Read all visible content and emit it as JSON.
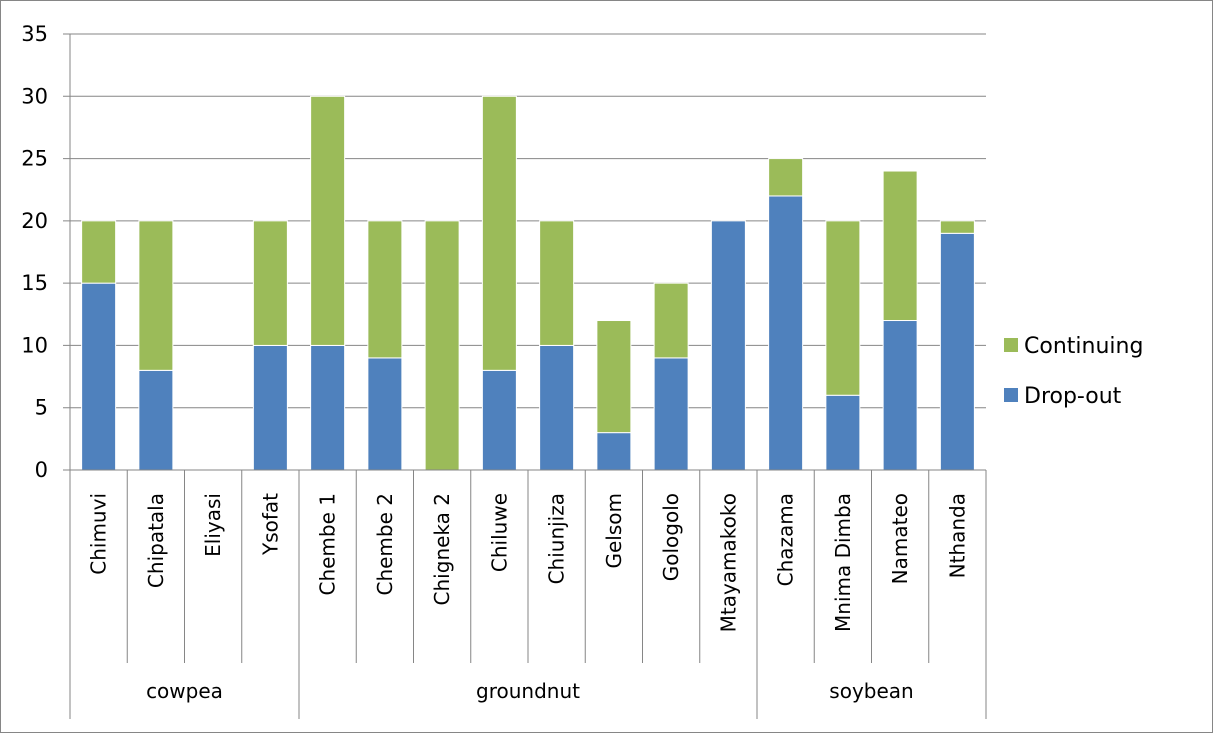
{
  "chart_data": {
    "type": "bar",
    "stacked": true,
    "title": "",
    "xlabel": "",
    "ylabel": "",
    "ylim": [
      0,
      35
    ],
    "yticks": [
      "0",
      "5",
      "10",
      "15",
      "20",
      "25",
      "30",
      "35"
    ],
    "grid": true,
    "legend_position": "right",
    "categories": [
      "Chimuvi",
      "Chipatala",
      "Eliyasi",
      "Ysofat",
      "Chembe 1",
      "Chembe 2",
      "Chigneka 2",
      "Chiluwe",
      "Chiunjiza",
      "Gelsom",
      "Gologolo",
      "Mtayamakoko",
      "Chazama",
      "Mnima Dimba",
      "Namateo",
      "Nthanda"
    ],
    "groups": [
      {
        "label": "cowpea",
        "count": 4
      },
      {
        "label": "groundnut",
        "count": 8
      },
      {
        "label": "soybean",
        "count": 4
      }
    ],
    "series": [
      {
        "name": "Drop-out",
        "color": "#4f81bd",
        "values": [
          15,
          8,
          0,
          10,
          10,
          9,
          0,
          8,
          10,
          3,
          9,
          20,
          22,
          6,
          12,
          19
        ]
      },
      {
        "name": "Continuing",
        "color": "#9bbb59",
        "values": [
          5,
          12,
          0,
          10,
          20,
          11,
          20,
          22,
          10,
          9,
          6,
          0,
          3,
          14,
          12,
          1
        ]
      }
    ],
    "legend_order": [
      "Continuing",
      "Drop-out"
    ]
  },
  "colors": {
    "axis": "#868686",
    "gridline": "#868686",
    "bar_edge": "#ffffff"
  }
}
